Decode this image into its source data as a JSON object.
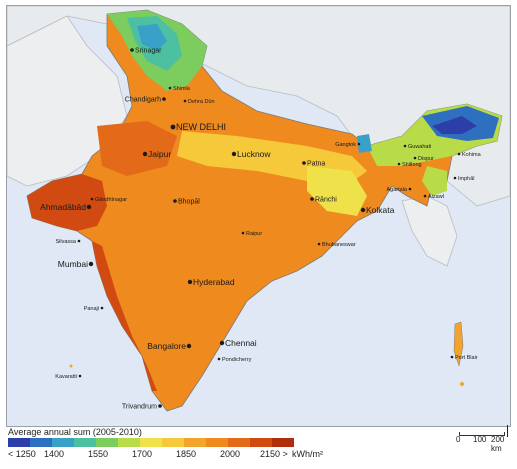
{
  "map": {
    "cities": [
      {
        "name": "Srinagar",
        "size": "small"
      },
      {
        "name": "Shimla",
        "size": "tiny"
      },
      {
        "name": "Chandigarh",
        "size": "small"
      },
      {
        "name": "Dehra Dūn",
        "size": "tiny"
      },
      {
        "name": "NEW DELHI",
        "size": "large"
      },
      {
        "name": "Jaipur",
        "size": "medium"
      },
      {
        "name": "Lucknow",
        "size": "medium"
      },
      {
        "name": "Patna",
        "size": "small"
      },
      {
        "name": "Gangtok",
        "size": "tiny"
      },
      {
        "name": "Guwahati",
        "size": "tiny"
      },
      {
        "name": "Kohima",
        "size": "tiny"
      },
      {
        "name": "Shillong",
        "size": "tiny"
      },
      {
        "name": "Dispur",
        "size": "tiny"
      },
      {
        "name": "Imphāl",
        "size": "tiny"
      },
      {
        "name": "Agartala",
        "size": "tiny"
      },
      {
        "name": "Aizawl",
        "size": "tiny"
      },
      {
        "name": "Rānchi",
        "size": "small"
      },
      {
        "name": "Kolkata",
        "size": "medium"
      },
      {
        "name": "Gāndhīnagar",
        "size": "tiny"
      },
      {
        "name": "Ahmadābād",
        "size": "medium"
      },
      {
        "name": "Bhopāl",
        "size": "small"
      },
      {
        "name": "Raipur",
        "size": "tiny"
      },
      {
        "name": "Bhubaneswar",
        "size": "tiny"
      },
      {
        "name": "Silvassa",
        "size": "tiny"
      },
      {
        "name": "Mumbai",
        "size": "medium"
      },
      {
        "name": "Hyderabad",
        "size": "medium"
      },
      {
        "name": "Panaji",
        "size": "tiny"
      },
      {
        "name": "Bangalore",
        "size": "medium"
      },
      {
        "name": "Chennai",
        "size": "medium"
      },
      {
        "name": "Pondicherry",
        "size": "tiny"
      },
      {
        "name": "Port Blair",
        "size": "tiny"
      },
      {
        "name": "Kavaratti",
        "size": "tiny"
      },
      {
        "name": "Trivandrum",
        "size": "small"
      }
    ]
  },
  "legend": {
    "title": "Average annual sum (2005-2010)",
    "colors": [
      "#2c3fa8",
      "#2f6fc0",
      "#39a0c8",
      "#4cc0a0",
      "#7ccc5e",
      "#b7dc47",
      "#eee14a",
      "#f5c93a",
      "#f2a52a",
      "#ee8a1e",
      "#e36a18",
      "#d04a12",
      "#b02e0c"
    ],
    "tick_labels": [
      "< 1250",
      "1400",
      "1550",
      "1700",
      "1850",
      "2000",
      "2150 >"
    ],
    "unit": "kWh/m²"
  },
  "scale": {
    "labels": [
      "0",
      "100",
      "200 km"
    ]
  }
}
